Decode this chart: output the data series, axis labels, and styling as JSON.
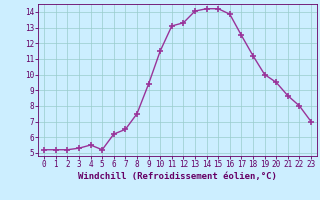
{
  "x": [
    0,
    1,
    2,
    3,
    4,
    5,
    6,
    7,
    8,
    9,
    10,
    11,
    12,
    13,
    14,
    15,
    16,
    17,
    18,
    19,
    20,
    21,
    22,
    23
  ],
  "y": [
    5.2,
    5.2,
    5.2,
    5.3,
    5.5,
    5.2,
    6.2,
    6.5,
    7.5,
    9.4,
    11.5,
    13.1,
    13.3,
    14.05,
    14.2,
    14.2,
    13.85,
    12.5,
    11.2,
    10.0,
    9.5,
    8.65,
    8.0,
    7.0
  ],
  "line_color": "#993399",
  "marker": "+",
  "marker_size": 4,
  "marker_lw": 1.2,
  "line_width": 1.0,
  "bg_color": "#cceeff",
  "grid_color": "#99cccc",
  "xlabel": "Windchill (Refroidissement éolien,°C)",
  "ylim": [
    4.8,
    14.5
  ],
  "xlim": [
    -0.5,
    23.5
  ],
  "xticks": [
    0,
    1,
    2,
    3,
    4,
    5,
    6,
    7,
    8,
    9,
    10,
    11,
    12,
    13,
    14,
    15,
    16,
    17,
    18,
    19,
    20,
    21,
    22,
    23
  ],
  "yticks": [
    5,
    6,
    7,
    8,
    9,
    10,
    11,
    12,
    13,
    14
  ],
  "tick_fontsize": 5.5,
  "xlabel_fontsize": 6.5,
  "label_color": "#660066",
  "spine_color": "#660066"
}
